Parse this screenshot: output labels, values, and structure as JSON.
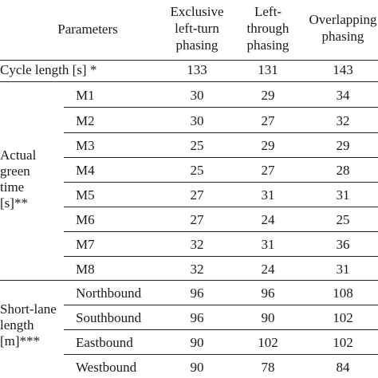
{
  "header": {
    "parameters": "Parameters",
    "col1": [
      "Exclusive",
      "left-turn",
      "phasing"
    ],
    "col2": [
      "Left-",
      "through",
      "phasing"
    ],
    "col3": [
      "Overlapping",
      "phasing"
    ]
  },
  "cycle": {
    "label": "Cycle length [s] *",
    "values": [
      "133",
      "131",
      "143"
    ]
  },
  "green": {
    "group_label": [
      "Actual",
      "green",
      "time",
      "[s]**"
    ],
    "rows": [
      {
        "label": "M1",
        "values": [
          "30",
          "29",
          "34"
        ]
      },
      {
        "label": "M2",
        "values": [
          "30",
          "27",
          "32"
        ]
      },
      {
        "label": "M3",
        "values": [
          "25",
          "29",
          "29"
        ]
      },
      {
        "label": "M4",
        "values": [
          "25",
          "27",
          "28"
        ]
      },
      {
        "label": "M5",
        "values": [
          "27",
          "31",
          "31"
        ]
      },
      {
        "label": "M6",
        "values": [
          "27",
          "24",
          "25"
        ]
      },
      {
        "label": "M7",
        "values": [
          "32",
          "31",
          "36"
        ]
      },
      {
        "label": "M8",
        "values": [
          "32",
          "24",
          "31"
        ]
      }
    ]
  },
  "shortlane": {
    "group_label": [
      "Short-lane",
      "length",
      "[m]***"
    ],
    "rows": [
      {
        "label": "Northbound",
        "values": [
          "96",
          "96",
          "108"
        ]
      },
      {
        "label": "Southbound",
        "values": [
          "96",
          "90",
          "102"
        ]
      },
      {
        "label": "Eastbound",
        "values": [
          "90",
          "102",
          "102"
        ]
      },
      {
        "label": "Westbound",
        "values": [
          "90",
          "78",
          "84"
        ]
      }
    ]
  }
}
